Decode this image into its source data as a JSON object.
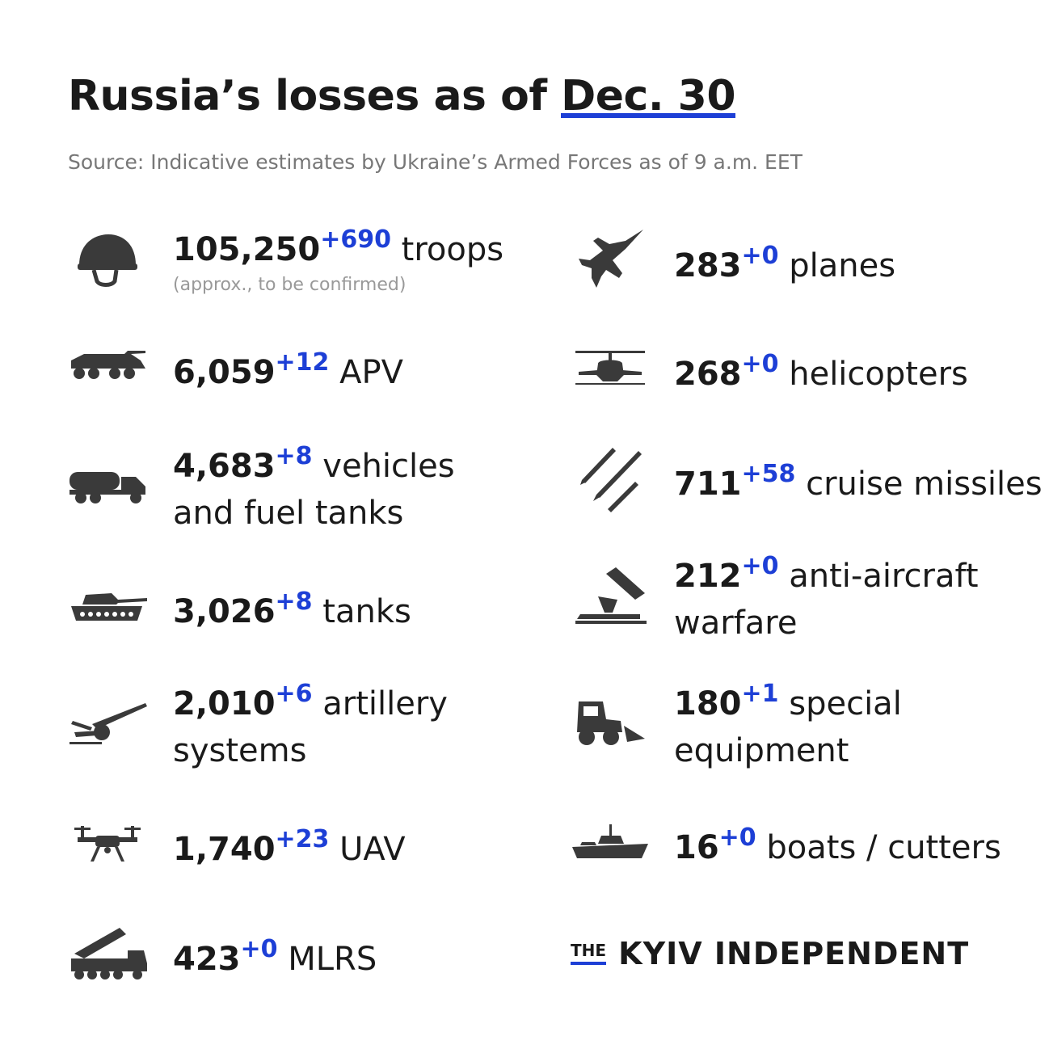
{
  "header": {
    "title": "Russia’s losses as of",
    "date": "Dec. 30",
    "source": "Source: Indicative estimates by Ukraine’s Armed Forces as of 9 a.m. EET"
  },
  "colors": {
    "accent": "#1d3fd6",
    "text": "#1a1a1a",
    "muted": "#777777",
    "icon": "#3a3a3a"
  },
  "left": [
    {
      "icon": "helmet-icon",
      "value": "105,250",
      "delta": "+690",
      "label": "troops",
      "note": "(approx., to be confirmed)"
    },
    {
      "icon": "apv-icon",
      "value": "6,059",
      "delta": "+12",
      "label": "APV"
    },
    {
      "icon": "fuel-truck-icon",
      "value": "4,683",
      "delta": "+8",
      "label": "vehicles",
      "label2": "and fuel tanks"
    },
    {
      "icon": "tank-icon",
      "value": "3,026",
      "delta": "+8",
      "label": "tanks"
    },
    {
      "icon": "artillery-icon",
      "value": "2,010",
      "delta": "+6",
      "label": "artillery",
      "label2": "systems"
    },
    {
      "icon": "drone-icon",
      "value": "1,740",
      "delta": "+23",
      "label": "UAV"
    },
    {
      "icon": "mlrs-icon",
      "value": "423",
      "delta": "+0",
      "label": "MLRS"
    }
  ],
  "right": [
    {
      "icon": "jet-icon",
      "value": "283",
      "delta": "+0",
      "label": "planes"
    },
    {
      "icon": "helicopter-icon",
      "value": "268",
      "delta": "+0",
      "label": "helicopters"
    },
    {
      "icon": "missiles-icon",
      "value": "711",
      "delta": "+58",
      "label": "cruise missiles"
    },
    {
      "icon": "anti-aircraft-icon",
      "value": "212",
      "delta": "+0",
      "label": "anti-aircraft",
      "label2": "warfare"
    },
    {
      "icon": "loader-icon",
      "value": "180",
      "delta": "+1",
      "label": "special",
      "label2": "equipment"
    },
    {
      "icon": "warship-icon",
      "value": "16",
      "delta": "+0",
      "label": "boats / cutters"
    }
  ],
  "brand": {
    "the": "THE",
    "name": "KYIV INDEPENDENT"
  }
}
